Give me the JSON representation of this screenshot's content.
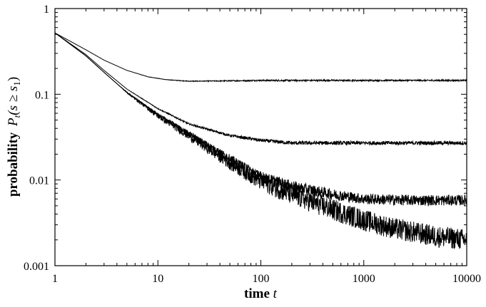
{
  "chart_data": {
    "type": "line",
    "xlabel": "time",
    "xlabel_var": "t",
    "ylabel": "probability",
    "ylabel_expr": "P",
    "ylabel_sub": "t",
    "ylabel_args": "(s ≥ s",
    "ylabel_args_sub": "1",
    "ylabel_close": ")",
    "xscale": "log",
    "yscale": "log",
    "xlim": [
      1,
      10000
    ],
    "ylim": [
      0.001,
      1
    ],
    "grid": false,
    "legend": "none",
    "x_ticks": [
      1,
      10,
      100,
      1000,
      10000
    ],
    "x_tick_labels": [
      "1",
      "10",
      "100",
      "1000",
      "10000"
    ],
    "y_ticks": [
      0.001,
      0.01,
      0.1,
      1
    ],
    "y_tick_labels": [
      "0.001",
      "0.01",
      "0.1",
      "1"
    ],
    "series": [
      {
        "x": [
          1,
          2,
          3,
          5,
          8,
          12,
          20,
          40,
          100,
          1000,
          10000
        ],
        "y": [
          0.52,
          0.33,
          0.25,
          0.19,
          0.16,
          0.148,
          0.142,
          0.143,
          0.145,
          0.145,
          0.145
        ],
        "noise": 0.02
      },
      {
        "x": [
          1,
          2,
          3,
          5,
          10,
          20,
          50,
          100,
          200,
          500,
          1000,
          10000
        ],
        "y": [
          0.52,
          0.29,
          0.19,
          0.115,
          0.068,
          0.045,
          0.033,
          0.029,
          0.027,
          0.027,
          0.027,
          0.027
        ],
        "noise": 0.05
      },
      {
        "x": [
          1,
          2,
          3,
          5,
          10,
          20,
          50,
          100,
          200,
          500,
          1000,
          3000,
          10000
        ],
        "y": [
          0.52,
          0.28,
          0.18,
          0.105,
          0.058,
          0.035,
          0.018,
          0.011,
          0.0085,
          0.0068,
          0.006,
          0.0058,
          0.0058
        ],
        "noise": 0.14
      },
      {
        "x": [
          1,
          2,
          3,
          5,
          10,
          20,
          50,
          100,
          200,
          500,
          1000,
          2000,
          5000,
          10000
        ],
        "y": [
          0.52,
          0.28,
          0.18,
          0.105,
          0.056,
          0.033,
          0.016,
          0.0098,
          0.0068,
          0.0045,
          0.0034,
          0.0027,
          0.0022,
          0.002
        ],
        "noise": 0.28
      }
    ]
  }
}
